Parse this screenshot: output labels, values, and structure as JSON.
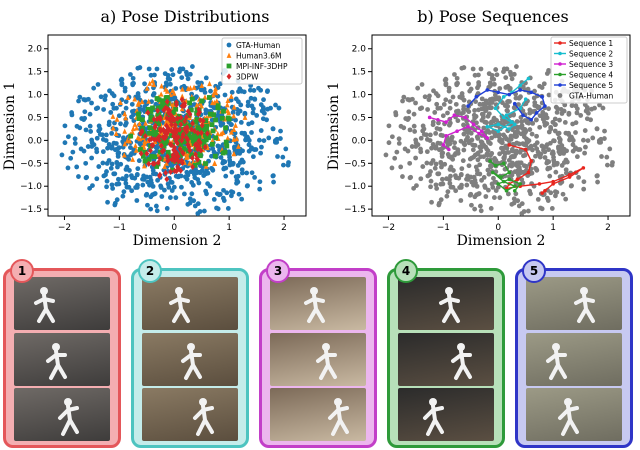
{
  "chart_data": [
    {
      "type": "scatter",
      "title": "a) Pose Distributions",
      "xlabel": "Dimension 2",
      "ylabel": "Dimension 1",
      "xlim": [
        -2.3,
        2.4
      ],
      "ylim": [
        -1.65,
        2.3
      ],
      "xticks": [
        "−2",
        "−1",
        "0",
        "1",
        "2"
      ],
      "yticks": [
        "−1.5",
        "−1.0",
        "−0.5",
        "0.0",
        "0.5",
        "1.0",
        "1.5",
        "2.0"
      ],
      "grid": false,
      "legend_position": "top-right",
      "series": [
        {
          "name": "GTA-Human",
          "color": "#1f77b4",
          "marker": "circle",
          "extent": {
            "cx": 0.05,
            "cy": 0.0,
            "rx": 2.1,
            "ry": 1.65
          }
        },
        {
          "name": "Human3.6M",
          "color": "#ff7f0e",
          "marker": "triangle",
          "extent": {
            "cx": 0.0,
            "cy": 0.3,
            "rx": 1.3,
            "ry": 1.05
          }
        },
        {
          "name": "MPI-INF-3DHP",
          "color": "#2ca02c",
          "marker": "square",
          "extent": {
            "cx": 0.1,
            "cy": 0.2,
            "rx": 0.95,
            "ry": 0.9
          }
        },
        {
          "name": "3DPW",
          "color": "#d62728",
          "marker": "diamond",
          "extent": {
            "cx": 0.0,
            "cy": 0.0,
            "rx": 0.65,
            "ry": 0.9
          }
        }
      ]
    },
    {
      "type": "line",
      "title": "b) Pose Sequences",
      "xlabel": "Dimension 2",
      "ylabel": "Dimension 1",
      "xlim": [
        -2.3,
        2.4
      ],
      "ylim": [
        -1.65,
        2.3
      ],
      "xticks": [
        "−2",
        "−1",
        "0",
        "1",
        "2"
      ],
      "yticks": [
        "−1.5",
        "−1.0",
        "−0.5",
        "0.0",
        "0.5",
        "1.0",
        "1.5",
        "2.0"
      ],
      "grid": false,
      "legend_position": "top-right",
      "background": {
        "name": "GTA-Human",
        "color": "#7f7f7f"
      },
      "series": [
        {
          "name": "Sequence 1",
          "color": "#e8261f",
          "x": [
            0.2,
            0.5,
            0.6,
            0.55,
            0.35,
            0.2,
            0.15,
            0.4,
            0.75,
            1.0,
            1.3,
            1.55,
            1.3,
            1.0,
            0.85,
            0.8
          ],
          "y": [
            -0.1,
            -0.2,
            -0.45,
            -0.7,
            -0.85,
            -0.95,
            -1.05,
            -1.0,
            -0.95,
            -0.9,
            -0.75,
            -0.6,
            -0.8,
            -0.95,
            -1.1,
            -1.15
          ]
        },
        {
          "name": "Sequence 2",
          "color": "#17becf",
          "x": [
            0.55,
            0.4,
            0.25,
            0.1,
            -0.05,
            0.1,
            0.3,
            0.2,
            0.0,
            -0.2,
            0.0,
            0.25,
            0.15,
            0.4,
            0.5
          ],
          "y": [
            1.35,
            1.2,
            1.05,
            0.95,
            0.7,
            0.5,
            0.35,
            0.25,
            0.35,
            0.3,
            0.2,
            0.4,
            0.55,
            0.7,
            0.9
          ]
        },
        {
          "name": "Sequence 3",
          "color": "#d020d0",
          "x": [
            -1.25,
            -1.1,
            -0.95,
            -0.8,
            -0.6,
            -0.45,
            -0.3,
            -0.2,
            -0.35,
            -0.55,
            -0.75,
            -0.95,
            -1.0,
            -0.9
          ],
          "y": [
            0.5,
            0.45,
            0.4,
            0.55,
            0.5,
            0.35,
            0.2,
            0.05,
            0.15,
            0.3,
            0.2,
            0.1,
            -0.1,
            -0.2
          ]
        },
        {
          "name": "Sequence 4",
          "color": "#2ca02c",
          "x": [
            -0.15,
            -0.05,
            0.1,
            0.2,
            0.05,
            -0.1,
            0.1,
            0.3,
            0.15,
            0.0,
            0.2,
            0.4,
            0.3
          ],
          "y": [
            -0.45,
            -0.55,
            -0.5,
            -0.7,
            -0.8,
            -0.7,
            -0.9,
            -1.0,
            -1.1,
            -0.95,
            -0.85,
            -0.95,
            -1.1
          ]
        },
        {
          "name": "Sequence 5",
          "color": "#1f3fd6",
          "x": [
            -0.55,
            -0.4,
            -0.2,
            0.0,
            0.2,
            0.4,
            0.6,
            0.8,
            0.85,
            0.7,
            0.6,
            0.45,
            0.3
          ],
          "y": [
            0.75,
            0.95,
            1.1,
            1.05,
            1.0,
            1.1,
            1.05,
            0.95,
            0.75,
            0.6,
            0.45,
            0.55,
            0.8
          ]
        }
      ]
    }
  ],
  "panels": [
    {
      "label": "1",
      "color": "#e4575a",
      "fill": "#f4aeb1"
    },
    {
      "label": "2",
      "color": "#4dc4c0",
      "fill": "#c4ecea"
    },
    {
      "label": "3",
      "color": "#c23fc8",
      "fill": "#ecb6ee"
    },
    {
      "label": "4",
      "color": "#2e9a3a",
      "fill": "#b7e0b9"
    },
    {
      "label": "5",
      "color": "#2f35c7",
      "fill": "#c7c9f1"
    }
  ]
}
